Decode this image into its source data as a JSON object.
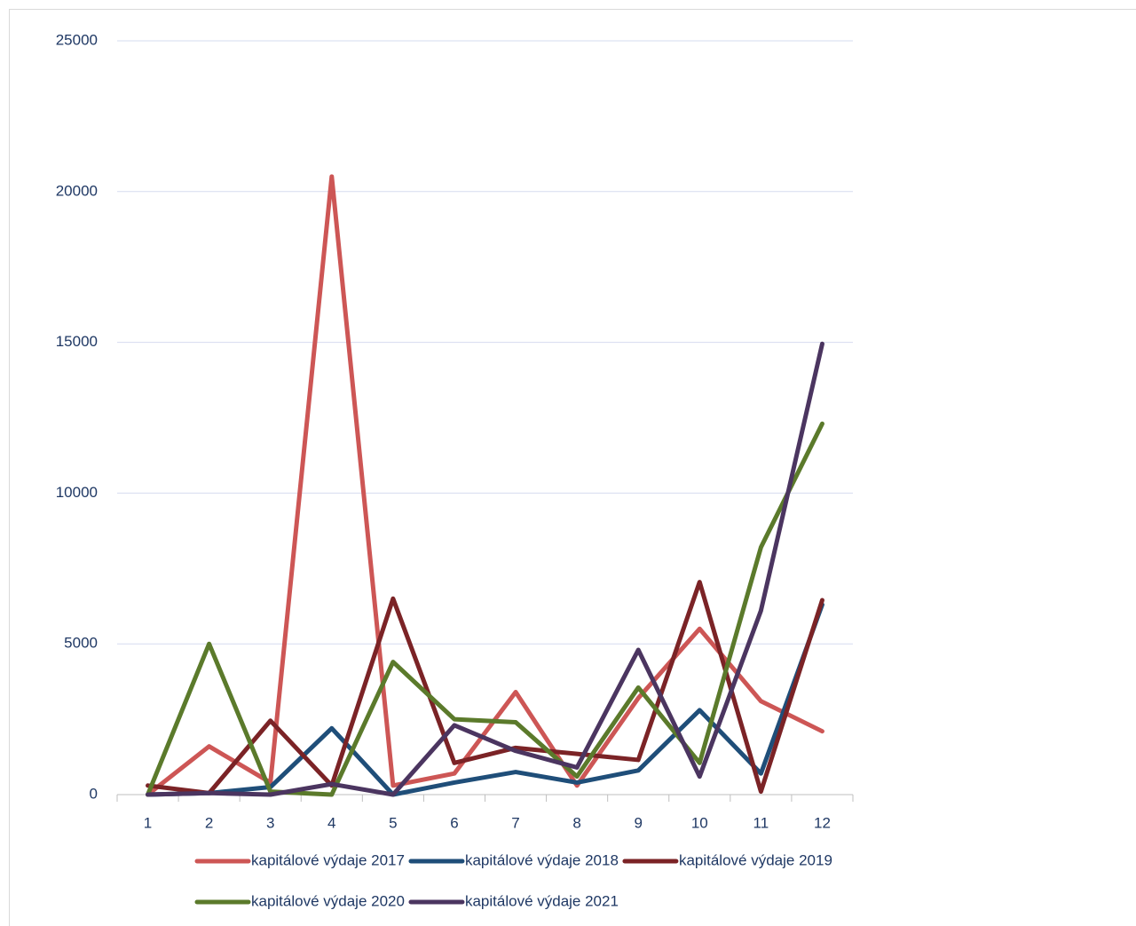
{
  "chart_data": {
    "type": "line",
    "categories": [
      "1",
      "2",
      "3",
      "4",
      "5",
      "6",
      "7",
      "8",
      "9",
      "10",
      "11",
      "12"
    ],
    "series": [
      {
        "name": "kapitálové výdaje 2017",
        "color": "#cd5655",
        "values": [
          0,
          1600,
          400,
          20500,
          300,
          700,
          3400,
          300,
          3200,
          5500,
          3100,
          2100
        ]
      },
      {
        "name": "kapitálové výdaje 2018",
        "color": "#1f4e79",
        "values": [
          0,
          50,
          250,
          2200,
          0,
          400,
          750,
          400,
          800,
          2800,
          700,
          6300
        ]
      },
      {
        "name": "kapitálové výdaje 2019",
        "color": "#7b2326",
        "values": [
          300,
          50,
          2450,
          300,
          6500,
          1050,
          1550,
          1350,
          1150,
          7050,
          100,
          6450
        ]
      },
      {
        "name": "kapitálové výdaje 2020",
        "color": "#5b7a2b",
        "values": [
          0,
          5000,
          100,
          0,
          4400,
          2500,
          2400,
          600,
          3550,
          1050,
          8200,
          12300
        ]
      },
      {
        "name": "kapitálové výdaje 2021",
        "color": "#4b3560",
        "values": [
          0,
          50,
          0,
          350,
          0,
          2300,
          1450,
          900,
          4800,
          600,
          6100,
          14950
        ]
      }
    ],
    "ylim": [
      0,
      25000
    ],
    "yticks": [
      0,
      5000,
      10000,
      15000,
      20000,
      25000
    ],
    "grid": true
  }
}
